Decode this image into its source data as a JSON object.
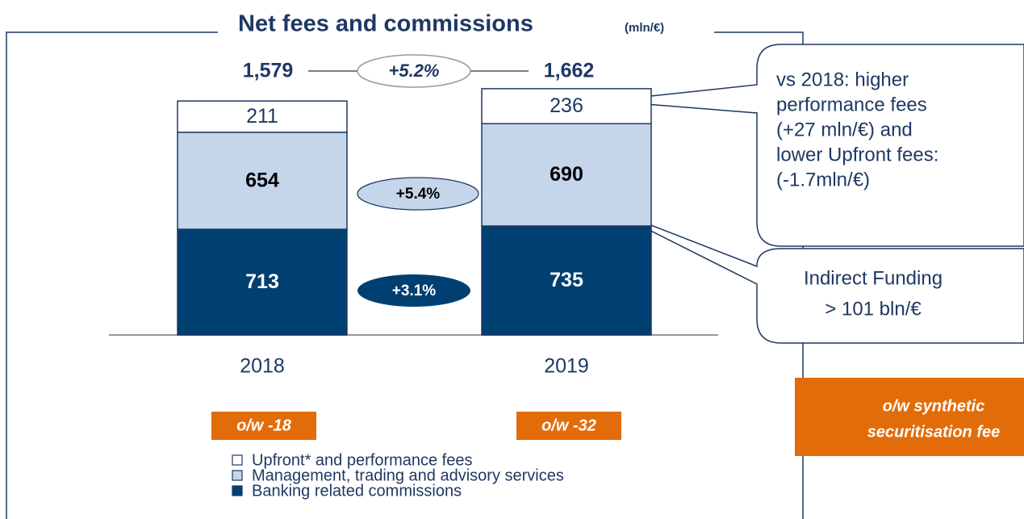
{
  "chart_data": {
    "type": "stacked_bar",
    "title": "Net fees and commissions",
    "unit": "(mln/€)",
    "categories": [
      "2018",
      "2019"
    ],
    "series": [
      {
        "name": "Banking related commissions",
        "color": "#003f72",
        "values": [
          713,
          735
        ]
      },
      {
        "name": "Management, trading and advisory services",
        "color": "#c5d5ea",
        "values": [
          654,
          690
        ]
      },
      {
        "name": "Upfront* and performance fees",
        "color": "#ffffff",
        "values": [
          211,
          236
        ]
      }
    ],
    "totals": {
      "values": [
        1579,
        1662
      ],
      "value_labels": [
        "1,579",
        "1,662"
      ]
    },
    "growth": {
      "total": "+5.2%",
      "management": "+5.4%",
      "banking": "+3.1%"
    },
    "notes": [
      "o/w -18",
      "o/w -32"
    ],
    "side_note": [
      "o/w synthetic",
      "securitisation fee"
    ],
    "callouts": [
      [
        "vs 2018: higher",
        "performance fees",
        "(+27 mln/€) and",
        "lower Upfront fees:",
        "(-1.7mln/€)"
      ],
      [
        "Indirect Funding",
        "> 101 bln/€"
      ]
    ]
  }
}
